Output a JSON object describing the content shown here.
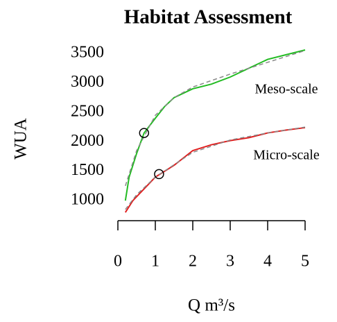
{
  "chart_data": {
    "type": "line",
    "title": "Habitat Assessment",
    "xlabel": "Q m³/s",
    "ylabel": "WUA",
    "xlim": [
      0,
      5
    ],
    "xticks": [
      0,
      1,
      2,
      3,
      4,
      5
    ],
    "ylim": [
      750,
      3600
    ],
    "yticks": [
      1000,
      1500,
      2000,
      2500,
      3000,
      3500
    ],
    "series": [
      {
        "name": "Meso-scale",
        "color": "#22bb22",
        "x": [
          0.2,
          0.3,
          0.5,
          0.7,
          1,
          1.25,
          1.5,
          2,
          2.5,
          3,
          3.5,
          4,
          4.5,
          5
        ],
        "values": [
          1000,
          1400,
          1800,
          2150,
          2400,
          2600,
          2750,
          2900,
          2980,
          3100,
          3250,
          3400,
          3480,
          3560
        ]
      },
      {
        "name": "Micro-scale",
        "color": "#e02020",
        "x": [
          0.2,
          0.4,
          0.7,
          1,
          1.5,
          2,
          2.5,
          3,
          3.5,
          4,
          4.5,
          5
        ],
        "values": [
          800,
          1000,
          1200,
          1400,
          1600,
          1850,
          1950,
          2020,
          2070,
          2150,
          2200,
          2240
        ]
      }
    ],
    "fits": [
      {
        "color": "#888888",
        "x": [
          0.2,
          0.5,
          1,
          1.5,
          2,
          3,
          4,
          5
        ],
        "values": [
          1250,
          1850,
          2450,
          2750,
          2930,
          3150,
          3350,
          3550
        ]
      },
      {
        "color": "#888888",
        "x": [
          0.2,
          0.5,
          1,
          2,
          3,
          4,
          5
        ],
        "values": [
          850,
          1100,
          1400,
          1820,
          2030,
          2150,
          2250
        ]
      }
    ],
    "markers": {
      "x": [
        0.7,
        1.1
      ],
      "y": [
        2150,
        1450
      ]
    }
  }
}
